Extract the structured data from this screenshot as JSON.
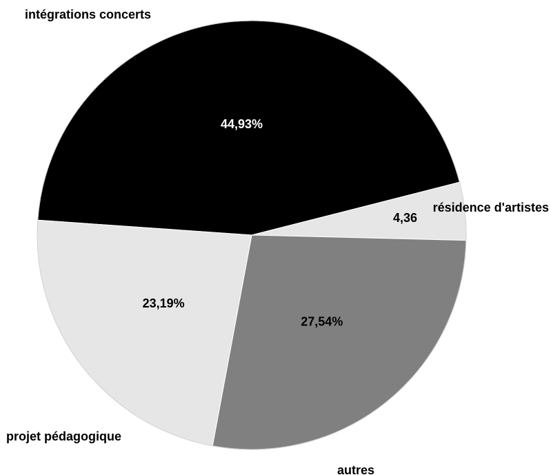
{
  "chart_data": {
    "type": "pie",
    "slices": [
      {
        "label": "intégrations concerts",
        "value": 44.93,
        "value_label": "44,93%",
        "color": "#000000",
        "text_color": "#ffffff"
      },
      {
        "label": "résidence d'artistes",
        "value": 4.36,
        "value_label": "4,36",
        "color": "#e6e6e6",
        "text_color": "#000000"
      },
      {
        "label": "autres",
        "value": 27.54,
        "value_label": "27,54%",
        "color": "#808080",
        "text_color": "#000000"
      },
      {
        "label": "projet pédagogique",
        "value": 23.19,
        "value_label": "23,19%",
        "color": "#e6e6e6",
        "text_color": "#000000"
      }
    ],
    "start_angle_deg": -86,
    "direction": "clockwise",
    "legend": "none",
    "grid": false
  }
}
